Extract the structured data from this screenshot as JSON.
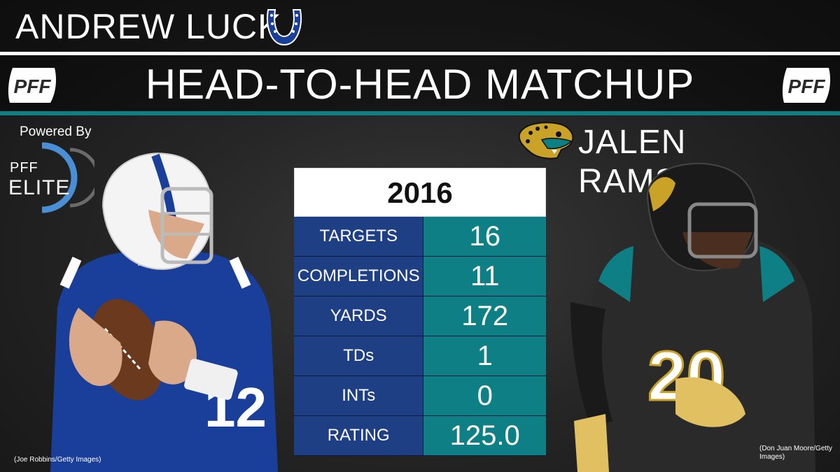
{
  "header": {
    "qb_name": "ANDREW LUCK",
    "title": "HEAD-TO-HEAD MATCHUP",
    "db_name": "JALEN RAMSEY",
    "pff_logo_text": "PFF"
  },
  "badge": {
    "powered_by": "Powered By",
    "pff": "PFF",
    "elite": "ELITE"
  },
  "table": {
    "year": "2016",
    "rows": [
      {
        "label": "TARGETS",
        "value": "16"
      },
      {
        "label": "COMPLETIONS",
        "value": "11"
      },
      {
        "label": "YARDS",
        "value": "172"
      },
      {
        "label": "TDs",
        "value": "1"
      },
      {
        "label": "INTs",
        "value": "0"
      },
      {
        "label": "RATING",
        "value": "125.0"
      }
    ]
  },
  "credits": {
    "left": "(Joe Robbins/Getty Images)",
    "right": "(Don Juan Moore/Getty Images)"
  },
  "colors": {
    "teal": "#0f7f86",
    "navy": "#1e3f83",
    "colts_blue": "#1a3f9a",
    "jaguar_gold": "#c9a227"
  },
  "icons": [
    "colts-horseshoe-icon",
    "jaguars-head-icon",
    "pff-logo-icon",
    "elite-ring-icon"
  ]
}
